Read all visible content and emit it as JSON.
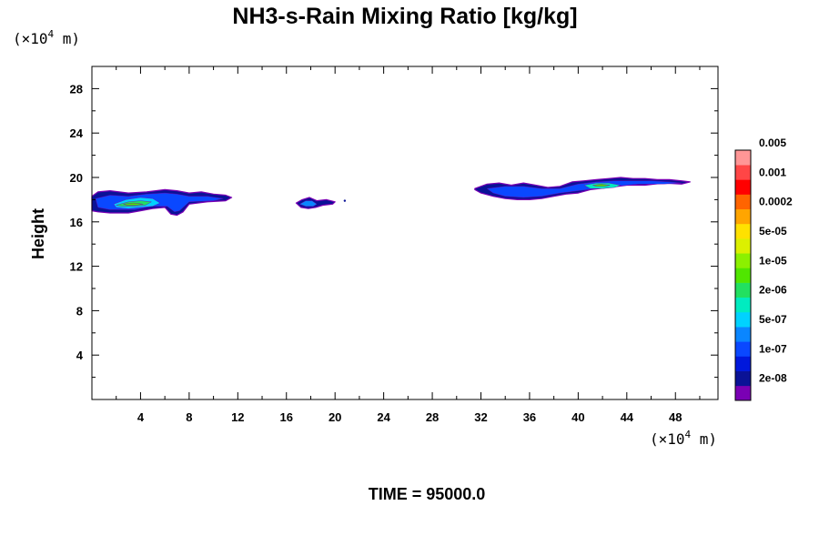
{
  "chart_data": {
    "type": "heatmap",
    "title": "NH3-s-Rain Mixing Ratio [kg/kg]",
    "ylabel": "Height",
    "xlabel": "",
    "x_unit": {
      "prefix": "(×10",
      "exp": "4",
      "suffix": " m)"
    },
    "y_unit": {
      "prefix": "(×10",
      "exp": "4",
      "suffix": " m)"
    },
    "xlim": [
      0,
      51.5
    ],
    "ylim": [
      0,
      30
    ],
    "x_ticks": [
      4,
      8,
      12,
      16,
      20,
      24,
      28,
      32,
      36,
      40,
      44,
      48
    ],
    "y_ticks": [
      4,
      8,
      12,
      16,
      20,
      24,
      28
    ],
    "time_label": "TIME = 95000.0",
    "colorbar": {
      "colors": [
        "#7a00b4",
        "#0a1296",
        "#0018dc",
        "#0a48ff",
        "#0a86ff",
        "#00d2ff",
        "#00ecc0",
        "#22e060",
        "#50e600",
        "#8cf000",
        "#dcf000",
        "#ffe100",
        "#ffa500",
        "#ff6400",
        "#ff0000",
        "#ff4646",
        "#ff9696"
      ],
      "labels": [
        "2e-08",
        "1e-07",
        "5e-07",
        "2e-06",
        "1e-05",
        "5e-05",
        "0.0002",
        "0.001",
        "0.005"
      ]
    },
    "blobs": [
      {
        "level": 0,
        "x": [
          0.0,
          0.5,
          1.5,
          3.0,
          4.5,
          6.0,
          7.0,
          8.0,
          9.0,
          10.0,
          11.0,
          11.5,
          11.0,
          9.5,
          8.0,
          7.5,
          7.0,
          6.5,
          6.0,
          5.0,
          4.0,
          3.0,
          1.5,
          0.5,
          0.0
        ],
        "y": [
          18.3,
          18.7,
          18.8,
          18.6,
          18.7,
          18.9,
          18.8,
          18.6,
          18.7,
          18.5,
          18.4,
          18.2,
          17.9,
          17.8,
          17.6,
          16.9,
          16.6,
          16.7,
          17.3,
          17.2,
          17.0,
          16.8,
          16.8,
          16.9,
          17.0
        ]
      },
      {
        "level": 2,
        "x": [
          0.3,
          1.5,
          3.0,
          4.5,
          6.0,
          7.0,
          8.0,
          9.5,
          10.8,
          10.0,
          8.0,
          7.2,
          6.8,
          6.2,
          5.0,
          3.5,
          1.5,
          0.5
        ],
        "y": [
          18.1,
          18.4,
          18.3,
          18.5,
          18.6,
          18.5,
          18.3,
          18.3,
          18.1,
          17.9,
          17.8,
          17.0,
          16.9,
          17.4,
          17.4,
          17.1,
          17.1,
          17.3
        ]
      },
      {
        "level": 4,
        "x": [
          1.8,
          2.8,
          4.0,
          5.0,
          5.6,
          5.0,
          4.0,
          3.0,
          2.0
        ],
        "y": [
          17.6,
          18.0,
          18.2,
          18.1,
          17.7,
          17.4,
          17.3,
          17.2,
          17.3
        ]
      },
      {
        "level": 6,
        "x": [
          2.0,
          3.0,
          4.0,
          4.9,
          4.4,
          3.4,
          2.4
        ],
        "y": [
          17.5,
          17.8,
          17.9,
          17.8,
          17.5,
          17.4,
          17.4
        ]
      },
      {
        "level": 7,
        "x": [
          2.6,
          3.4,
          4.2,
          3.6,
          2.9
        ],
        "y": [
          17.6,
          17.7,
          17.6,
          17.5,
          17.5
        ]
      },
      {
        "level": 0,
        "x": [
          16.8,
          17.3,
          17.9,
          18.5,
          19.3,
          20.0,
          19.8,
          19.0,
          18.4,
          17.8,
          17.2
        ],
        "y": [
          17.7,
          18.0,
          18.2,
          17.9,
          18.0,
          17.8,
          17.6,
          17.5,
          17.3,
          17.2,
          17.3
        ]
      },
      {
        "level": 3,
        "x": [
          17.1,
          17.6,
          18.1,
          18.5,
          18.2,
          17.6
        ],
        "y": [
          17.6,
          17.9,
          17.9,
          17.6,
          17.4,
          17.4
        ]
      },
      {
        "level": 0,
        "x": [
          31.5,
          32.5,
          33.5,
          34.5,
          35.5,
          36.5,
          37.5,
          38.5,
          39.5,
          40.5,
          41.5,
          42.5,
          43.5,
          44.5,
          45.5,
          46.5,
          47.5,
          48.5,
          49.2,
          48.5,
          47.0,
          45.5,
          44.0,
          42.5,
          41.0,
          40.0,
          39.0,
          38.0,
          37.0,
          36.0,
          35.0,
          34.0,
          33.0,
          32.0,
          31.5
        ],
        "y": [
          19.0,
          19.4,
          19.5,
          19.3,
          19.5,
          19.3,
          19.1,
          19.2,
          19.6,
          19.7,
          19.8,
          19.9,
          20.0,
          19.9,
          19.9,
          19.8,
          19.8,
          19.7,
          19.6,
          19.4,
          19.5,
          19.3,
          19.3,
          19.1,
          18.9,
          18.6,
          18.5,
          18.3,
          18.1,
          18.0,
          18.0,
          18.1,
          18.3,
          18.6,
          18.9
        ]
      },
      {
        "level": 2,
        "x": [
          32.5,
          34.0,
          35.5,
          37.0,
          38.5,
          40.0,
          41.5,
          43.0,
          44.5,
          46.0,
          47.5,
          48.5,
          47.0,
          45.0,
          43.0,
          41.5,
          40.0,
          38.5,
          37.0,
          35.5,
          34.0,
          33.0
        ],
        "y": [
          19.0,
          19.2,
          19.2,
          19.0,
          19.0,
          19.4,
          19.6,
          19.7,
          19.7,
          19.7,
          19.6,
          19.5,
          19.4,
          19.4,
          19.2,
          19.0,
          18.8,
          18.6,
          18.3,
          18.2,
          18.3,
          18.6
        ]
      },
      {
        "level": 5,
        "x": [
          40.5,
          41.5,
          42.5,
          43.5,
          43.0,
          42.0,
          41.0
        ],
        "y": [
          19.3,
          19.5,
          19.5,
          19.3,
          19.1,
          19.0,
          19.0
        ]
      },
      {
        "level": 7,
        "x": [
          41.2,
          41.9,
          42.6,
          42.1,
          41.5
        ],
        "y": [
          19.3,
          19.4,
          19.3,
          19.2,
          19.2
        ]
      }
    ],
    "dots": [
      {
        "level": 0,
        "x": 20.8,
        "y": 17.9
      }
    ]
  }
}
